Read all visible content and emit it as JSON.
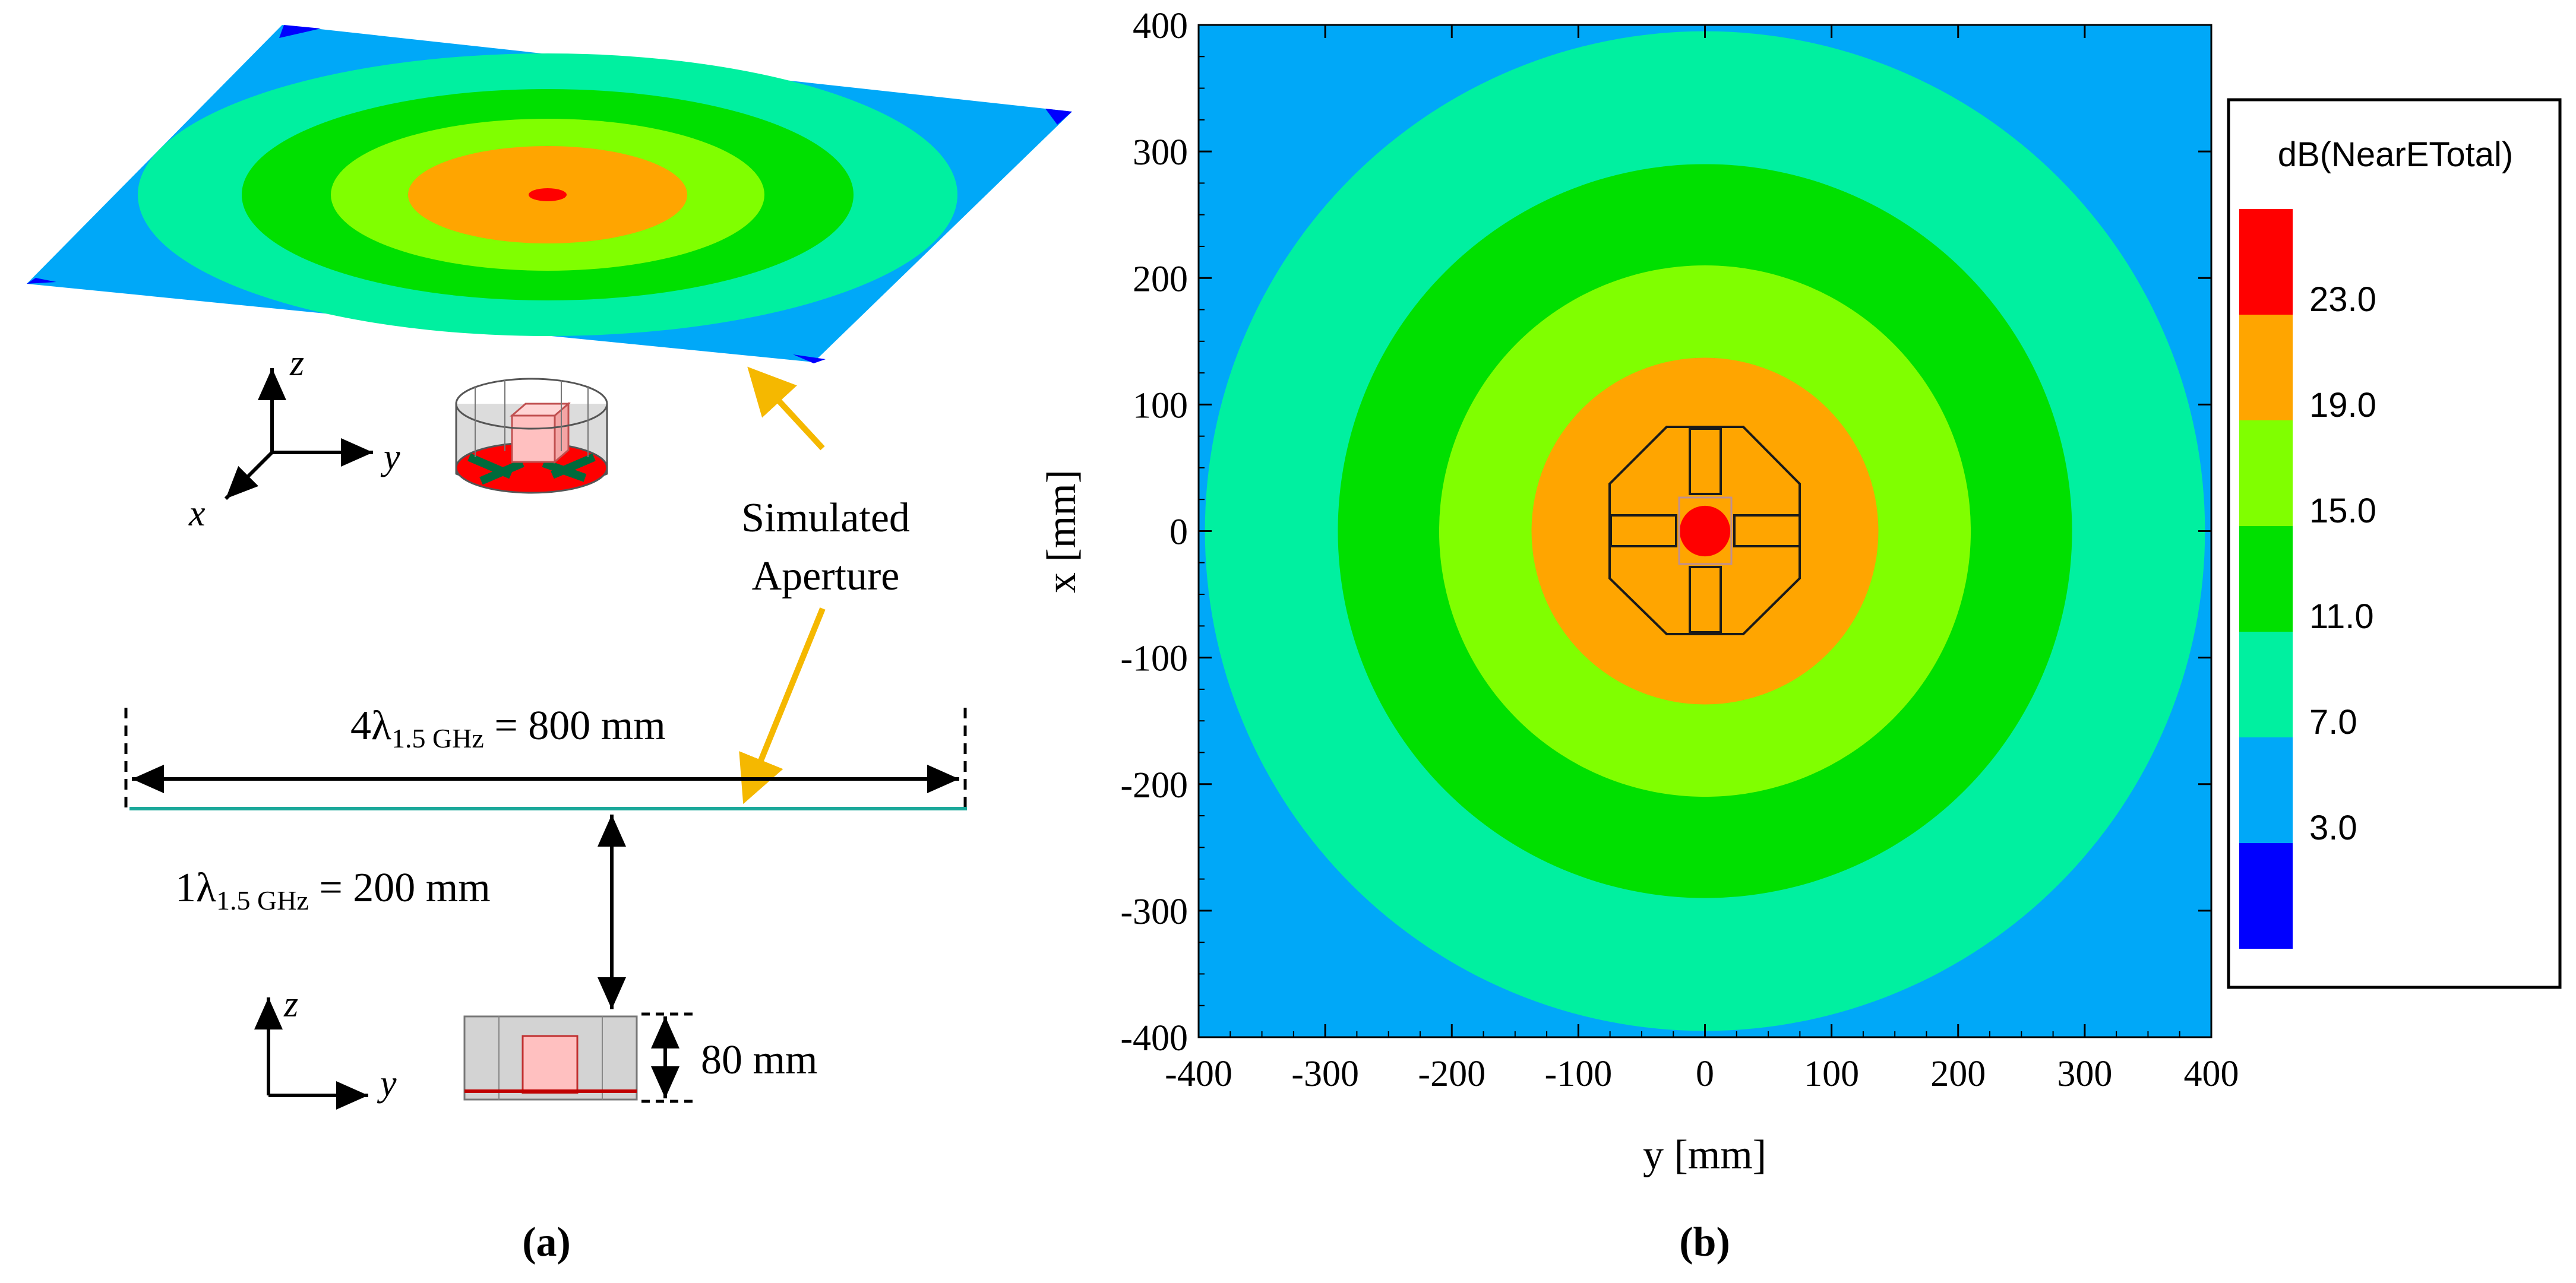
{
  "panel_a": {
    "axes_top": {
      "z": "z",
      "y": "y",
      "x": "x"
    },
    "axes_bottom": {
      "z": "z",
      "y": "y"
    },
    "annotation": {
      "line1": "Simulated",
      "line2": "Aperture"
    },
    "width_label": {
      "prefix": "4λ",
      "sub": "1.5 GHz",
      "suffix": " = 800 mm"
    },
    "height_label": {
      "prefix": "1λ",
      "sub": "1.5 GHz",
      "suffix": " = 200 mm"
    },
    "antenna_height": "80 mm",
    "caption": "(a)"
  },
  "panel_b": {
    "caption": "(b)",
    "colors": {
      "red": "#ff0000",
      "orange": "#ffa500",
      "lightgreen": "#80ff00",
      "green": "#00e000",
      "aqua": "#00f0a0",
      "lightblue": "#00a8f8",
      "blue": "#0000ff"
    }
  },
  "chart_data": {
    "type": "heatmap",
    "title": "",
    "xlabel": "y [mm]",
    "ylabel": "x [mm]",
    "xlim": [
      -400,
      400
    ],
    "ylim": [
      -400,
      400
    ],
    "x_ticks": [
      "-400",
      "-300",
      "-200",
      "-100",
      "0",
      "100",
      "200",
      "300",
      "400"
    ],
    "y_ticks": [
      "400",
      "300",
      "200",
      "100",
      "0",
      "-100",
      "-200",
      "-300",
      "-400"
    ],
    "legend": {
      "title": "dB(NearETotal)",
      "levels": [
        "23.0",
        "19.0",
        "15.0",
        "11.0",
        "7.0",
        "3.0"
      ]
    },
    "contours_radius_mm": [
      {
        "band": "> 23.0",
        "radius": 20
      },
      {
        "band": "19.0 – 23.0",
        "radius": 137
      },
      {
        "band": "15.0 – 19.0",
        "radius": 210
      },
      {
        "band": "11.0 – 15.0",
        "radius": 290
      },
      {
        "band": "7.0 – 11.0",
        "radius": 395
      },
      {
        "band": "3.0 – 7.0",
        "radius": 570
      }
    ]
  }
}
